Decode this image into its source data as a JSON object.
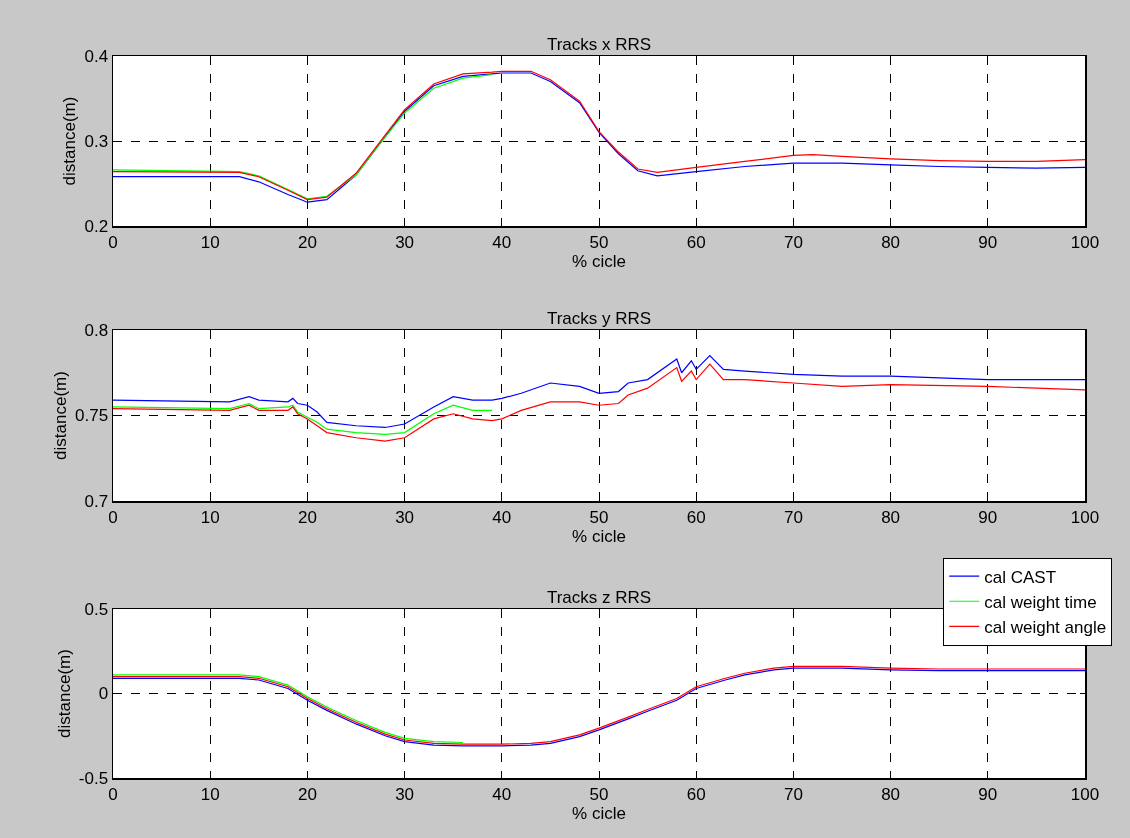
{
  "chart_data": [
    {
      "type": "line",
      "title": "Tracks x RRS",
      "xlabel": "% cicle",
      "ylabel": "distance(m)",
      "xlim": [
        0,
        100
      ],
      "xticks": [
        0,
        10,
        20,
        30,
        40,
        50,
        60,
        70,
        80,
        90,
        100
      ],
      "ylim": [
        0.2,
        0.4
      ],
      "yticks": [
        0.2,
        0.3,
        0.4
      ],
      "grid": true,
      "legend": false,
      "x": [
        0,
        13,
        15,
        18,
        20,
        22,
        25,
        27,
        30,
        33,
        36,
        39,
        40,
        43,
        45,
        48,
        50,
        52,
        54,
        56,
        60,
        65,
        70,
        72,
        75,
        80,
        85,
        90,
        95,
        100
      ],
      "series": [
        {
          "color": "#0000ff",
          "values": [
            0.258,
            0.258,
            0.252,
            0.237,
            0.228,
            0.231,
            0.26,
            0.29,
            0.335,
            0.365,
            0.376,
            0.379,
            0.38,
            0.38,
            0.37,
            0.345,
            0.31,
            0.285,
            0.265,
            0.259,
            0.264,
            0.27,
            0.274,
            0.274,
            0.274,
            0.272,
            0.27,
            0.269,
            0.268,
            0.269
          ]
        },
        {
          "color": "#00ff00",
          "values": [
            0.266,
            0.264,
            0.259,
            0.243,
            0.232,
            0.235,
            0.26,
            0.29,
            0.333,
            0.362,
            0.374,
            0.378,
            null,
            null,
            null,
            null,
            null,
            null,
            null,
            null,
            null,
            null,
            null,
            null,
            null,
            null,
            null,
            null,
            null,
            null
          ]
        },
        {
          "color": "#ff0000",
          "values": [
            0.264,
            0.263,
            0.258,
            0.242,
            0.231,
            0.234,
            0.262,
            0.292,
            0.337,
            0.367,
            0.379,
            0.381,
            0.382,
            0.382,
            0.372,
            0.347,
            0.311,
            0.287,
            0.267,
            0.263,
            0.269,
            0.276,
            0.283,
            0.284,
            0.282,
            0.279,
            0.277,
            0.276,
            0.276,
            0.278
          ]
        }
      ]
    },
    {
      "type": "line",
      "title": "Tracks y RRS",
      "xlabel": "% cicle",
      "ylabel": "distance(m)",
      "xlim": [
        0,
        100
      ],
      "xticks": [
        0,
        10,
        20,
        30,
        40,
        50,
        60,
        70,
        80,
        90,
        100
      ],
      "ylim": [
        0.7,
        0.8
      ],
      "yticks": [
        0.7,
        0.75,
        0.8
      ],
      "grid": true,
      "legend": false,
      "x": [
        0,
        12,
        14,
        15,
        18,
        18.5,
        19,
        20,
        21,
        22,
        25,
        28,
        30,
        33,
        35,
        37,
        39,
        40,
        42,
        45,
        48,
        50,
        52,
        53,
        55,
        58,
        58.5,
        59.5,
        60,
        61.4,
        62.8,
        65,
        70,
        75,
        80,
        90,
        100
      ],
      "series": [
        {
          "color": "#0000ff",
          "values": [
            0.759,
            0.758,
            0.761,
            0.759,
            0.758,
            0.76,
            0.757,
            0.756,
            0.752,
            0.746,
            0.744,
            0.743,
            0.745,
            0.755,
            0.761,
            0.759,
            0.759,
            0.76,
            0.763,
            0.769,
            0.767,
            0.763,
            0.764,
            0.769,
            0.771,
            0.783,
            0.775,
            0.782,
            0.777,
            0.785,
            0.777,
            0.776,
            0.774,
            0.773,
            0.773,
            0.771,
            0.771
          ]
        },
        {
          "color": "#00ff00",
          "values": [
            0.755,
            0.754,
            0.757,
            0.754,
            0.755,
            0.756,
            0.752,
            0.749,
            0.746,
            0.742,
            0.74,
            0.739,
            0.74,
            0.751,
            0.756,
            0.753,
            0.753,
            null,
            null,
            null,
            null,
            null,
            null,
            null,
            null,
            null,
            null,
            null,
            null,
            null,
            null,
            null,
            null,
            null,
            null,
            null,
            null
          ]
        },
        {
          "color": "#ff0000",
          "values": [
            0.754,
            0.753,
            0.756,
            0.753,
            0.753,
            0.755,
            0.751,
            0.748,
            0.744,
            0.74,
            0.737,
            0.735,
            0.737,
            0.748,
            0.751,
            0.748,
            0.747,
            0.748,
            0.753,
            0.758,
            0.758,
            0.756,
            0.757,
            0.762,
            0.766,
            0.778,
            0.77,
            0.776,
            0.771,
            0.78,
            0.771,
            0.771,
            0.769,
            0.767,
            0.768,
            0.767,
            0.765
          ]
        }
      ]
    },
    {
      "type": "line",
      "title": "Tracks z RRS",
      "xlabel": "% cicle",
      "ylabel": "distance(m)",
      "xlim": [
        0,
        100
      ],
      "xticks": [
        0,
        10,
        20,
        30,
        40,
        50,
        60,
        70,
        80,
        90,
        100
      ],
      "ylim": [
        -0.5,
        0.5
      ],
      "yticks": [
        -0.5,
        0,
        0.5
      ],
      "grid": true,
      "legend": "top right",
      "x": [
        0,
        13,
        15,
        18,
        20,
        22,
        25,
        28,
        30,
        33,
        36,
        40,
        43,
        45,
        48,
        50,
        53,
        55,
        58,
        60,
        63,
        65,
        68,
        70,
        75,
        80,
        85,
        90,
        100
      ],
      "series": [
        {
          "name": "cal CAST",
          "color": "#0000ff",
          "values": [
            0.09,
            0.09,
            0.08,
            0.03,
            -0.04,
            -0.1,
            -0.18,
            -0.25,
            -0.285,
            -0.305,
            -0.31,
            -0.31,
            -0.305,
            -0.295,
            -0.255,
            -0.215,
            -0.15,
            -0.105,
            -0.04,
            0.03,
            0.08,
            0.11,
            0.14,
            0.15,
            0.15,
            0.14,
            0.135,
            0.135,
            0.135
          ]
        },
        {
          "name": "cal weight time",
          "color": "#00ff00",
          "values": [
            0.11,
            0.11,
            0.1,
            0.05,
            -0.02,
            -0.08,
            -0.16,
            -0.23,
            -0.265,
            -0.285,
            -0.29,
            null,
            null,
            null,
            null,
            null,
            null,
            null,
            null,
            null,
            null,
            null,
            null,
            null,
            null,
            null,
            null,
            null,
            null
          ]
        },
        {
          "name": "cal weight angle",
          "color": "#ff0000",
          "values": [
            0.1,
            0.1,
            0.09,
            0.04,
            -0.03,
            -0.09,
            -0.17,
            -0.24,
            -0.275,
            -0.295,
            -0.3,
            -0.3,
            -0.295,
            -0.285,
            -0.245,
            -0.205,
            -0.14,
            -0.095,
            -0.03,
            0.04,
            0.09,
            0.12,
            0.15,
            0.16,
            0.16,
            0.15,
            0.145,
            0.145,
            0.145
          ]
        }
      ]
    }
  ]
}
